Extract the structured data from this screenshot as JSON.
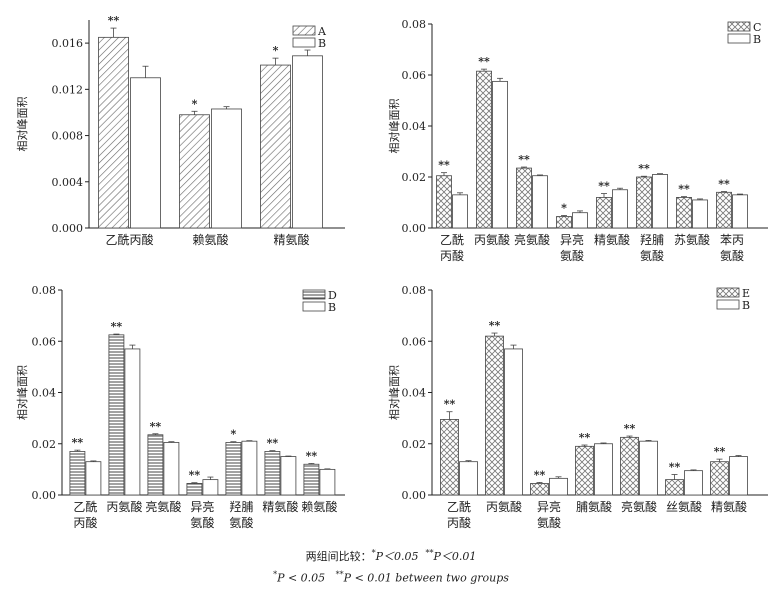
{
  "panels": [
    {
      "ylabel": "相对峰面积",
      "ylim": [
        0,
        0.018
      ],
      "yticks": [
        "0.000",
        "0.004",
        "0.008",
        "0.012",
        "0.016"
      ],
      "ytick_values": [
        0,
        0.004,
        0.008,
        0.012,
        0.016
      ],
      "legend": [
        "A",
        "B"
      ],
      "categories": [
        [
          "乙酰丙酸"
        ],
        [
          "赖氨酸"
        ],
        [
          "精氨酸"
        ]
      ],
      "pattern1": "diag",
      "values1": [
        0.0165,
        0.0098,
        0.0141
      ],
      "err1": [
        0.0008,
        0.0003,
        0.0006
      ],
      "values2": [
        0.013,
        0.0103,
        0.0149
      ],
      "err2": [
        0.001,
        0.0002,
        0.0005
      ],
      "marks": [
        "**",
        "*",
        "*"
      ]
    },
    {
      "ylabel": "相对峰面积",
      "ylim": [
        0,
        0.08
      ],
      "yticks": [
        "0.00",
        "0.02",
        "0.04",
        "0.06",
        "0.08"
      ],
      "ytick_values": [
        0,
        0.02,
        0.04,
        0.06,
        0.08
      ],
      "legend": [
        "C",
        "B"
      ],
      "categories": [
        [
          "乙酰",
          "丙酸"
        ],
        [
          "丙氨酸"
        ],
        [
          "亮氨酸"
        ],
        [
          "异亮",
          "氨酸"
        ],
        [
          "精氨酸"
        ],
        [
          "羟脯",
          "氨酸"
        ],
        [
          "苏氨酸"
        ],
        [
          "苯丙",
          "氨酸"
        ]
      ],
      "pattern1": "cross",
      "values1": [
        0.0205,
        0.0615,
        0.0235,
        0.0045,
        0.012,
        0.02,
        0.012,
        0.014
      ],
      "err1": [
        0.0012,
        0.0008,
        0.0004,
        0.0004,
        0.0015,
        0.0003,
        0.0003,
        0.0003
      ],
      "values2": [
        0.013,
        0.0575,
        0.0205,
        0.006,
        0.015,
        0.021,
        0.011,
        0.013
      ],
      "err2": [
        0.0008,
        0.0012,
        0.0003,
        0.0007,
        0.0006,
        0.0003,
        0.0004,
        0.0003
      ],
      "marks": [
        "**",
        "**",
        "**",
        "*",
        "**",
        "**",
        "**",
        "**"
      ]
    },
    {
      "ylabel": "相对峰面积",
      "ylim": [
        0,
        0.08
      ],
      "yticks": [
        "0.00",
        "0.02",
        "0.04",
        "0.06",
        "0.08"
      ],
      "ytick_values": [
        0,
        0.02,
        0.04,
        0.06,
        0.08
      ],
      "legend": [
        "D",
        "B"
      ],
      "categories": [
        [
          "乙酰",
          "丙酸"
        ],
        [
          "丙氨酸"
        ],
        [
          "亮氨酸"
        ],
        [
          "异亮",
          "氨酸"
        ],
        [
          "羟脯",
          "氨酸"
        ],
        [
          "精氨酸"
        ],
        [
          "赖氨酸"
        ]
      ],
      "pattern1": "horiz",
      "values1": [
        0.017,
        0.0625,
        0.0235,
        0.0045,
        0.0205,
        0.017,
        0.012
      ],
      "err1": [
        0.0005,
        0.0003,
        0.0004,
        0.0003,
        0.0003,
        0.0003,
        0.0003
      ],
      "values2": [
        0.013,
        0.057,
        0.0205,
        0.006,
        0.021,
        0.015,
        0.01
      ],
      "err2": [
        0.0003,
        0.0015,
        0.0003,
        0.001,
        0.0002,
        0.0002,
        0.0002
      ],
      "marks": [
        "**",
        "**",
        "**",
        "**",
        "*",
        "**",
        "**"
      ]
    },
    {
      "ylabel": "相对峰面积",
      "ylim": [
        0,
        0.08
      ],
      "yticks": [
        "0.00",
        "0.02",
        "0.04",
        "0.06",
        "0.08"
      ],
      "ytick_values": [
        0,
        0.02,
        0.04,
        0.06,
        0.08
      ],
      "legend": [
        "E",
        "B"
      ],
      "categories": [
        [
          "乙酰",
          "丙酸"
        ],
        [
          "丙氨酸"
        ],
        [
          "异亮",
          "氨酸"
        ],
        [
          "脯氨酸"
        ],
        [
          "亮氨酸"
        ],
        [
          "丝氨酸"
        ],
        [
          "精氨酸"
        ]
      ],
      "pattern1": "cross",
      "values1": [
        0.0295,
        0.062,
        0.0045,
        0.019,
        0.0225,
        0.006,
        0.013
      ],
      "err1": [
        0.003,
        0.0012,
        0.0004,
        0.0005,
        0.0005,
        0.002,
        0.001
      ],
      "values2": [
        0.013,
        0.057,
        0.0065,
        0.02,
        0.021,
        0.0095,
        0.015
      ],
      "err2": [
        0.0004,
        0.0015,
        0.0006,
        0.0003,
        0.0003,
        0.0003,
        0.0004
      ],
      "marks": [
        "**",
        "**",
        "**",
        "**",
        "**",
        "**",
        "**"
      ]
    }
  ],
  "caption": {
    "line1_prefix": "两组间比较：",
    "p1": "P＜0.05",
    "p2": "P＜0.01",
    "line2_p1": "P < 0.05",
    "line2_p2": "P < 0.01 between two groups",
    "star1": "*",
    "star2": "**"
  },
  "colors": {
    "bar_fill": "#ffffff",
    "pattern": "#555555",
    "axis": "#222222"
  }
}
